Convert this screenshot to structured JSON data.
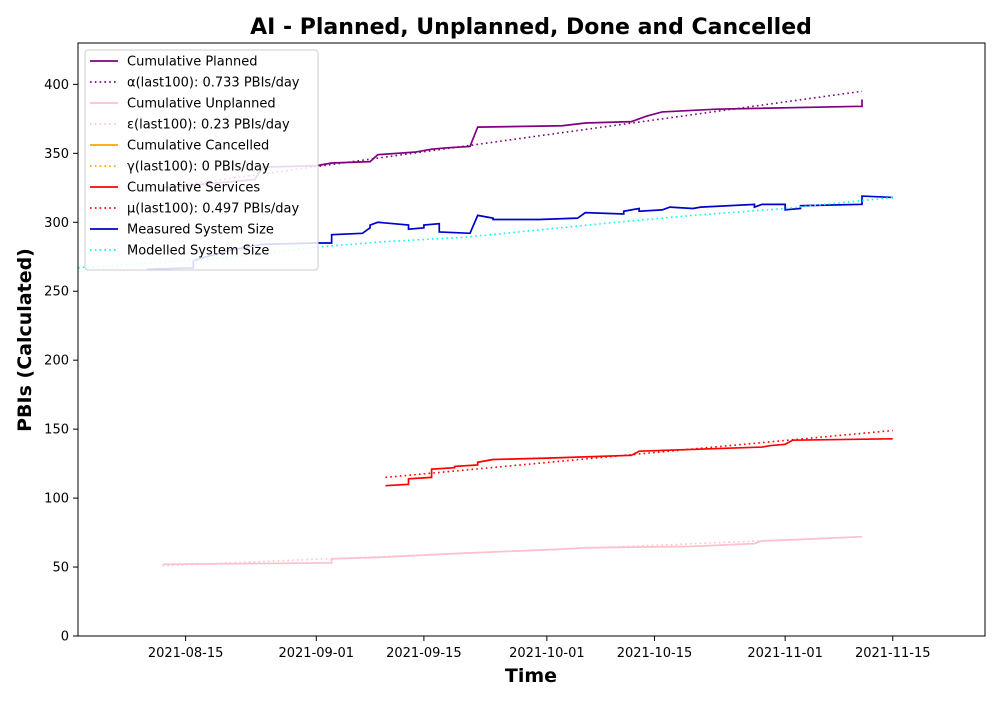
{
  "chart_data": {
    "type": "line",
    "title": "AI - Planned, Unplanned, Done  and Cancelled",
    "xlabel": "Time",
    "ylabel": "PBIs (Calculated)",
    "x_range": [
      "2021-08-01",
      "2021-11-27"
    ],
    "ylim": [
      0,
      430
    ],
    "x_ticks": [
      "2021-08-15",
      "2021-09-01",
      "2021-09-15",
      "2021-10-01",
      "2021-10-15",
      "2021-11-01",
      "2021-11-15"
    ],
    "y_ticks": [
      0,
      50,
      100,
      150,
      200,
      250,
      300,
      350,
      400
    ],
    "grid": false,
    "legend_position": "upper-left",
    "series": [
      {
        "name": "Cumulative Planned",
        "color": "#800080",
        "style": "solid",
        "points": [
          [
            "2021-08-12",
            325
          ],
          [
            "2021-08-24",
            331
          ],
          [
            "2021-08-25",
            340
          ],
          [
            "2021-09-01",
            341
          ],
          [
            "2021-09-03",
            343
          ],
          [
            "2021-09-08",
            344
          ],
          [
            "2021-09-09",
            349
          ],
          [
            "2021-09-14",
            351
          ],
          [
            "2021-09-16",
            353
          ],
          [
            "2021-09-18",
            354
          ],
          [
            "2021-09-21",
            355
          ],
          [
            "2021-09-22",
            369
          ],
          [
            "2021-10-03",
            370
          ],
          [
            "2021-10-06",
            372
          ],
          [
            "2021-10-12",
            373
          ],
          [
            "2021-10-14",
            377
          ],
          [
            "2021-10-16",
            380
          ],
          [
            "2021-10-23",
            382
          ],
          [
            "2021-11-10",
            384
          ],
          [
            "2021-11-11",
            384
          ],
          [
            "2021-11-11",
            389
          ]
        ]
      },
      {
        "name": "α(last100): 0.733 PBIs/day",
        "color": "#800080",
        "style": "dotted",
        "points": [
          [
            "2021-08-12",
            325
          ],
          [
            "2021-11-11",
            395
          ]
        ]
      },
      {
        "name": "Cumulative Unplanned",
        "color": "#ffc0cb",
        "style": "solid",
        "points": [
          [
            "2021-08-12",
            52
          ],
          [
            "2021-09-03",
            53
          ],
          [
            "2021-09-03",
            56
          ],
          [
            "2021-09-09",
            57
          ],
          [
            "2021-09-20",
            60
          ],
          [
            "2021-10-03",
            63
          ],
          [
            "2021-10-06",
            64
          ],
          [
            "2021-10-20",
            65
          ],
          [
            "2021-10-28",
            67
          ],
          [
            "2021-10-29",
            69
          ],
          [
            "2021-11-03",
            70
          ],
          [
            "2021-11-11",
            72
          ]
        ]
      },
      {
        "name": "ε(last100): 0.23 PBIs/day",
        "color": "#ffc0cb",
        "style": "dotted",
        "points": [
          [
            "2021-08-12",
            51
          ],
          [
            "2021-11-11",
            72
          ]
        ]
      },
      {
        "name": "Cumulative Cancelled",
        "color": "#ffa500",
        "style": "solid",
        "points": []
      },
      {
        "name": "γ(last100): 0 PBIs/day",
        "color": "#ffa500",
        "style": "dotted",
        "points": []
      },
      {
        "name": "Cumulative Services",
        "color": "#ff0000",
        "style": "solid",
        "points": [
          [
            "2021-09-10",
            109
          ],
          [
            "2021-09-13",
            110
          ],
          [
            "2021-09-13",
            114
          ],
          [
            "2021-09-16",
            115
          ],
          [
            "2021-09-16",
            121
          ],
          [
            "2021-09-19",
            122
          ],
          [
            "2021-09-19",
            123
          ],
          [
            "2021-09-22",
            124
          ],
          [
            "2021-09-22",
            126
          ],
          [
            "2021-09-24",
            128
          ],
          [
            "2021-10-01",
            129
          ],
          [
            "2021-10-12",
            131
          ],
          [
            "2021-10-13",
            134
          ],
          [
            "2021-10-29",
            137
          ],
          [
            "2021-10-30",
            138
          ],
          [
            "2021-11-01",
            139
          ],
          [
            "2021-11-02",
            142
          ],
          [
            "2021-11-15",
            143
          ]
        ]
      },
      {
        "name": "μ(last100): 0.497 PBIs/day",
        "color": "#ff0000",
        "style": "dotted",
        "points": [
          [
            "2021-09-10",
            115
          ],
          [
            "2021-11-15",
            149
          ]
        ]
      },
      {
        "name": "Measured System Size",
        "color": "#0000cd",
        "style": "solid",
        "points": [
          [
            "2021-08-10",
            266
          ],
          [
            "2021-08-16",
            267
          ],
          [
            "2021-08-16",
            272
          ],
          [
            "2021-08-17",
            274
          ],
          [
            "2021-08-21",
            280
          ],
          [
            "2021-08-25",
            284
          ],
          [
            "2021-09-01",
            285
          ],
          [
            "2021-09-03",
            285
          ],
          [
            "2021-09-03",
            291
          ],
          [
            "2021-09-07",
            292
          ],
          [
            "2021-09-08",
            296
          ],
          [
            "2021-09-08",
            298
          ],
          [
            "2021-09-09",
            300
          ],
          [
            "2021-09-13",
            298
          ],
          [
            "2021-09-13",
            295
          ],
          [
            "2021-09-15",
            296
          ],
          [
            "2021-09-15",
            298
          ],
          [
            "2021-09-17",
            299
          ],
          [
            "2021-09-17",
            293
          ],
          [
            "2021-09-21",
            292
          ],
          [
            "2021-09-21",
            292
          ],
          [
            "2021-09-22",
            305
          ],
          [
            "2021-09-24",
            303
          ],
          [
            "2021-09-24",
            302
          ],
          [
            "2021-09-30",
            302
          ],
          [
            "2021-10-05",
            303
          ],
          [
            "2021-10-06",
            307
          ],
          [
            "2021-10-11",
            306
          ],
          [
            "2021-10-11",
            308
          ],
          [
            "2021-10-12",
            309
          ],
          [
            "2021-10-13",
            310
          ],
          [
            "2021-10-13",
            308
          ],
          [
            "2021-10-16",
            309
          ],
          [
            "2021-10-17",
            311
          ],
          [
            "2021-10-20",
            310
          ],
          [
            "2021-10-21",
            311
          ],
          [
            "2021-10-28",
            313
          ],
          [
            "2021-10-28",
            311
          ],
          [
            "2021-10-29",
            313
          ],
          [
            "2021-11-01",
            313
          ],
          [
            "2021-11-01",
            309
          ],
          [
            "2021-11-03",
            310
          ],
          [
            "2021-11-03",
            312
          ],
          [
            "2021-11-11",
            313
          ],
          [
            "2021-11-11",
            319
          ],
          [
            "2021-11-15",
            318
          ]
        ]
      },
      {
        "name": "Modelled System Size",
        "color": "#00ffff",
        "style": "dotted",
        "points": [
          [
            "2021-08-01",
            267
          ],
          [
            "2021-08-20",
            274
          ],
          [
            "2021-09-01",
            282
          ],
          [
            "2021-09-10",
            286
          ],
          [
            "2021-09-20",
            289
          ],
          [
            "2021-10-01",
            295
          ],
          [
            "2021-10-10",
            300
          ],
          [
            "2021-10-20",
            305
          ],
          [
            "2021-11-01",
            310
          ],
          [
            "2021-11-15",
            318
          ]
        ]
      }
    ]
  }
}
